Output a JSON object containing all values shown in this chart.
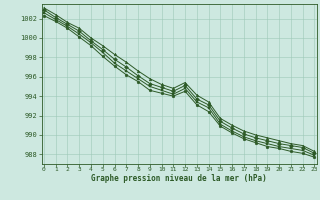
{
  "xlabel": "Graphe pression niveau de la mer (hPa)",
  "bg_color": "#cde8e0",
  "grid_color": "#9ec8b8",
  "line_color": "#2d5a27",
  "xlim": [
    -0.2,
    23.2
  ],
  "ylim": [
    987.0,
    1003.5
  ],
  "yticks": [
    988,
    990,
    992,
    994,
    996,
    998,
    1000,
    1002
  ],
  "xticks": [
    0,
    1,
    2,
    3,
    4,
    5,
    6,
    7,
    8,
    9,
    10,
    11,
    12,
    13,
    14,
    15,
    16,
    17,
    18,
    19,
    20,
    21,
    22,
    23
  ],
  "lines": [
    [
      1003.1,
      1002.4,
      1001.6,
      1001.0,
      1000.0,
      999.2,
      998.3,
      997.5,
      996.6,
      995.8,
      995.2,
      994.8,
      995.4,
      994.1,
      993.4,
      991.7,
      991.0,
      990.4,
      990.0,
      989.7,
      989.4,
      989.1,
      988.9,
      988.3
    ],
    [
      1002.9,
      1002.1,
      1001.4,
      1000.7,
      999.7,
      998.8,
      997.8,
      997.0,
      996.1,
      995.3,
      994.9,
      994.5,
      995.1,
      993.7,
      993.1,
      991.4,
      990.7,
      990.1,
      989.7,
      989.4,
      989.1,
      988.9,
      988.7,
      988.1
    ],
    [
      1002.6,
      1001.9,
      1001.2,
      1000.4,
      999.5,
      998.5,
      997.4,
      996.6,
      995.8,
      995.0,
      994.6,
      994.2,
      994.8,
      993.4,
      992.8,
      991.1,
      990.4,
      989.8,
      989.4,
      989.1,
      988.8,
      988.6,
      988.4,
      987.9
    ],
    [
      1002.3,
      1001.7,
      1001.0,
      1000.1,
      999.2,
      998.1,
      997.1,
      996.2,
      995.5,
      994.6,
      994.3,
      994.0,
      994.5,
      993.1,
      992.4,
      990.9,
      990.2,
      989.6,
      989.2,
      988.8,
      988.6,
      988.3,
      988.1,
      987.7
    ]
  ]
}
